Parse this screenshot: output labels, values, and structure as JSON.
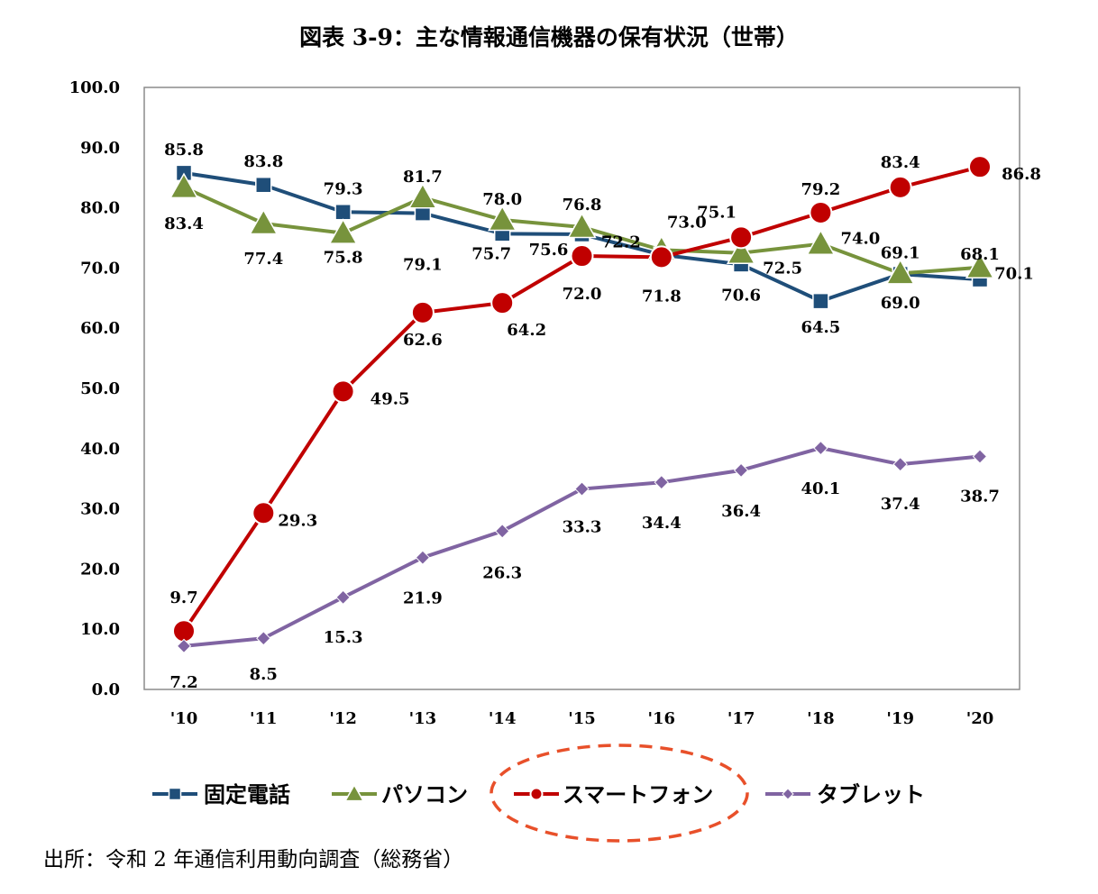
{
  "title": "図表 3-9：主な情報通信機器の保有状況（世帯）",
  "source_note": "出所：令和 2 年通信利用動向調査（総務省）",
  "chart_data": {
    "type": "line",
    "title": "図表 3-9：主な情報通信機器の保有状況（世帯）",
    "xlabel": "",
    "ylabel": "",
    "categories": [
      "'10",
      "'11",
      "'12",
      "'13",
      "'14",
      "'15",
      "'16",
      "'17",
      "'18",
      "'19",
      "'20"
    ],
    "ylim": [
      0,
      100
    ],
    "yticks": [
      "0.0",
      "10.0",
      "20.0",
      "30.0",
      "40.0",
      "50.0",
      "60.0",
      "70.0",
      "80.0",
      "90.0",
      "100.0"
    ],
    "grid": false,
    "legend_position": "bottom",
    "series": [
      {
        "name": "固定電話",
        "color": "#1f4e79",
        "marker": "square",
        "values": [
          85.8,
          83.8,
          79.3,
          79.1,
          75.7,
          75.6,
          72.2,
          70.6,
          64.5,
          69.0,
          68.1
        ],
        "value_labels": [
          "85.8",
          "83.8",
          "79.3",
          "79.1",
          "75.7",
          "75.6",
          "72.2",
          "70.6",
          "64.5",
          "69.0",
          "68.1"
        ]
      },
      {
        "name": "パソコン",
        "color": "#77933c",
        "marker": "triangle",
        "values": [
          83.4,
          77.4,
          75.8,
          81.7,
          78.0,
          76.8,
          73.0,
          72.5,
          74.0,
          69.1,
          70.1
        ],
        "value_labels": [
          "83.4",
          "77.4",
          "75.8",
          "81.7",
          "78.0",
          "76.8",
          "73.0",
          "72.5",
          "74.0",
          "69.1",
          "70.1"
        ]
      },
      {
        "name": "スマートフォン",
        "color": "#c00000",
        "marker": "circle",
        "values": [
          9.7,
          29.3,
          49.5,
          62.6,
          64.2,
          72.0,
          71.8,
          75.1,
          79.2,
          83.4,
          86.8
        ],
        "value_labels": [
          "9.7",
          "29.3",
          "49.5",
          "62.6",
          "64.2",
          "72.0",
          "71.8",
          "75.1",
          "79.2",
          "83.4",
          "86.8"
        ]
      },
      {
        "name": "タブレット",
        "color": "#8064a2",
        "marker": "diamond",
        "values": [
          7.2,
          8.5,
          15.3,
          21.9,
          26.3,
          33.3,
          34.4,
          36.4,
          40.1,
          37.4,
          38.7
        ],
        "value_labels": [
          "7.2",
          "8.5",
          "15.3",
          "21.9",
          "26.3",
          "33.3",
          "34.4",
          "36.4",
          "40.1",
          "37.4",
          "38.7"
        ]
      }
    ],
    "highlight": {
      "series": "スマートフォン",
      "style": "dashed-ellipse",
      "color": "#e8502a"
    }
  }
}
